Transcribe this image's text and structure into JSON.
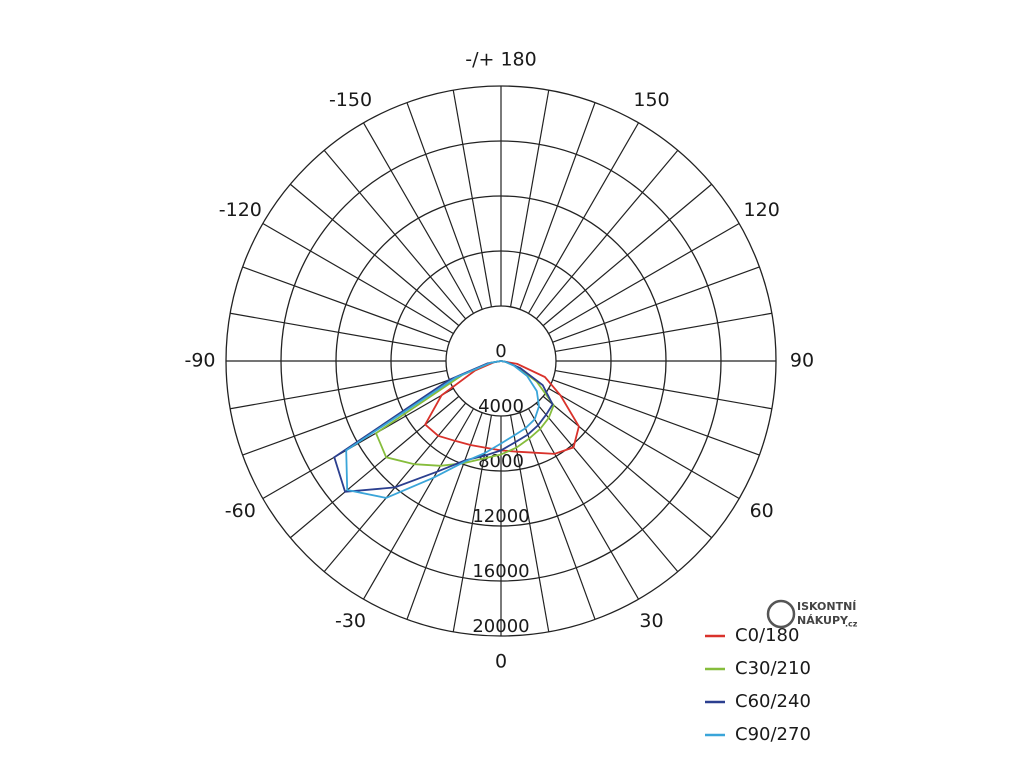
{
  "chart_data": {
    "type": "polar",
    "x": [
      -90,
      -80,
      -70,
      -60,
      -50,
      -40,
      -30,
      -20,
      -10,
      0,
      10,
      20,
      30,
      40,
      50,
      60,
      70,
      80,
      90
    ],
    "series": [
      {
        "name": "C0/180",
        "color": "#d9322b",
        "values": [
          0,
          500,
          2000,
          5000,
          7200,
          7100,
          6700,
          6500,
          6400,
          6500,
          6700,
          7100,
          7800,
          8200,
          7400,
          5000,
          3400,
          1200,
          0
        ]
      },
      {
        "name": "C30/210",
        "color": "#86bd3c",
        "values": [
          0,
          800,
          3000,
          10500,
          10900,
          9800,
          8800,
          7900,
          7200,
          6800,
          6400,
          6000,
          5700,
          5400,
          5000,
          3000,
          1200,
          300,
          0
        ]
      },
      {
        "name": "C60/240",
        "color": "#2b3f8f",
        "values": [
          0,
          1000,
          4000,
          14000,
          14800,
          12000,
          9300,
          7700,
          7000,
          6500,
          6000,
          5700,
          5400,
          5100,
          4900,
          3500,
          1500,
          400,
          0
        ]
      },
      {
        "name": "C90/270",
        "color": "#3aa5d9",
        "values": [
          0,
          800,
          3500,
          13000,
          14600,
          13000,
          9800,
          7800,
          6800,
          6000,
          5500,
          5200,
          4900,
          4300,
          3400,
          2200,
          1000,
          300,
          0
        ]
      }
    ],
    "ylim": [
      0,
      20000
    ],
    "yticks": [
      0,
      4000,
      8000,
      12000,
      16000,
      20000
    ],
    "xticks": [
      {
        "value": 180,
        "label": "-/+ 180"
      },
      150,
      120,
      90,
      60,
      30,
      0,
      -30,
      -60,
      -90,
      -120,
      -150
    ],
    "legend": "bottom-right"
  },
  "watermark": {
    "line1": "ISKONTNÍ",
    "line2": "NÁKUPY",
    "suffix": ".cz"
  }
}
